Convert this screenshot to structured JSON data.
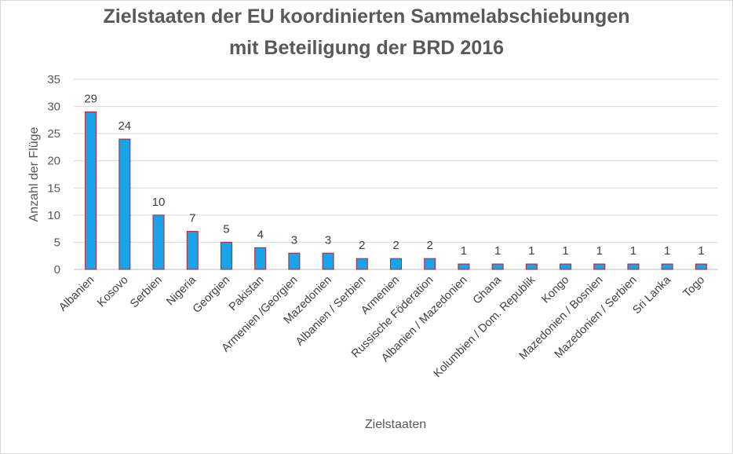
{
  "chart_data": {
    "type": "bar",
    "title": [
      "Zielstaaten der EU koordinierten Sammelabschiebungen",
      "mit Beteiligung der BRD 2016"
    ],
    "xlabel": "Zielstaaten",
    "ylabel": "Anzahl der Flüge",
    "ylim": [
      0,
      35
    ],
    "yticks": [
      0,
      5,
      10,
      15,
      20,
      25,
      30,
      35
    ],
    "grid": true,
    "legend": "none",
    "categories": [
      "Albanien",
      "Kosovo",
      "Serbien",
      "Nigeria",
      "Georgien",
      "Pakistan",
      "Armenien /Georgien",
      "Mazedonien",
      "Albanien / Serbien",
      "Armenien",
      "Russische Föderation",
      "Albanien / Mazedonien",
      "Ghana",
      "Kolumbien / Dom. Republik",
      "Kongo",
      "Mazedonien / Bosnien",
      "Mazedonien / Serbien",
      "Sri Lanka",
      "Togo"
    ],
    "values": [
      29,
      24,
      10,
      7,
      5,
      4,
      3,
      3,
      2,
      2,
      2,
      1,
      1,
      1,
      1,
      1,
      1,
      1,
      1
    ],
    "colors": {
      "bar_fill": "#1aa3e8",
      "bar_stroke": "#c0202a",
      "grid": "#d9d9d9",
      "axis": "#bfbfbf"
    }
  }
}
